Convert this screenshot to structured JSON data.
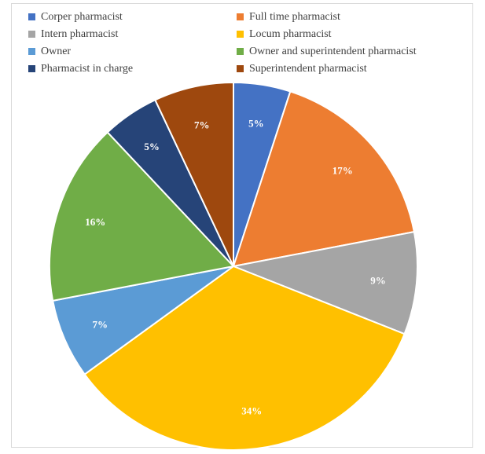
{
  "chart_data": {
    "type": "pie",
    "title": "",
    "legend_position": "top",
    "slices": [
      {
        "name": "Corper pharmacist",
        "value": 5,
        "label": "5%",
        "color": "#4472C4"
      },
      {
        "name": "Full time pharmacist",
        "value": 17,
        "label": "17%",
        "color": "#ED7D31"
      },
      {
        "name": "Intern pharmacist",
        "value": 9,
        "label": "9%",
        "color": "#A5A5A5"
      },
      {
        "name": "Locum pharmacist",
        "value": 34,
        "label": "34%",
        "color": "#FFC000"
      },
      {
        "name": "Owner",
        "value": 7,
        "label": "7%",
        "color": "#5B9BD5"
      },
      {
        "name": "Owner and superintendent pharmacist",
        "value": 16,
        "label": "16%",
        "color": "#70AD47"
      },
      {
        "name": "Pharmacist in charge",
        "value": 5,
        "label": "5%",
        "color": "#264478"
      },
      {
        "name": "Superintendent pharmacist",
        "value": 7,
        "label": "7%",
        "color": "#9E480E"
      }
    ]
  }
}
